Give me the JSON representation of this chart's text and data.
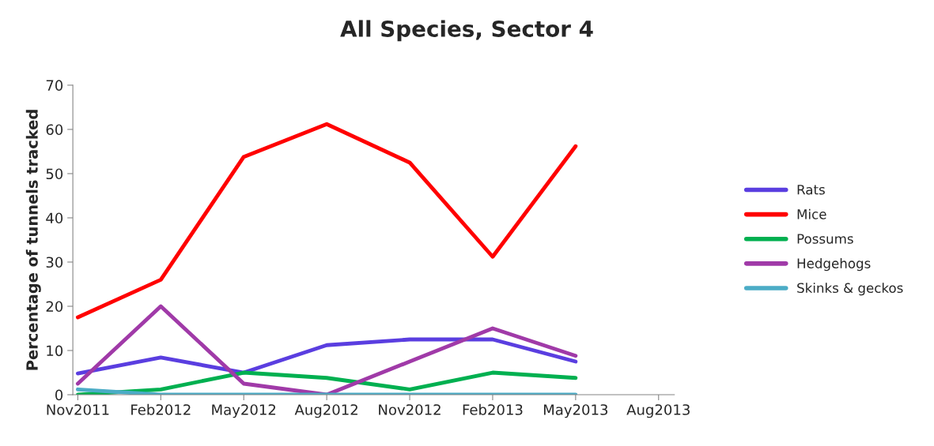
{
  "chart_data": {
    "type": "line",
    "title": "All Species, Sector 4",
    "ylabel": "Percentage of tunnels tracked",
    "categories": [
      "Nov2011",
      "Feb2012",
      "May2012",
      "Aug2012",
      "Nov2012",
      "Feb2013",
      "May2013",
      "Aug2013"
    ],
    "series": [
      {
        "name": "Rats",
        "color": "#5a3ee0",
        "values": [
          4.8,
          8.4,
          5,
          11.2,
          12.5,
          12.5,
          7.5,
          null
        ]
      },
      {
        "name": "Mice",
        "color": "#ff0000",
        "values": [
          17.5,
          26,
          53.8,
          61.2,
          52.5,
          31.2,
          56.2,
          null
        ]
      },
      {
        "name": "Possums",
        "color": "#00b050",
        "values": [
          0,
          1.2,
          5,
          3.8,
          1.2,
          5,
          3.8,
          null
        ]
      },
      {
        "name": "Hedgehogs",
        "color": "#a03aa8",
        "values": [
          2.5,
          20,
          2.5,
          0,
          7.5,
          15,
          8.8,
          null
        ]
      },
      {
        "name": "Skinks & geckos",
        "color": "#4bacc6",
        "values": [
          1.2,
          0,
          0,
          0,
          0,
          0,
          0,
          null
        ]
      }
    ],
    "ylim": [
      0,
      70
    ],
    "yticks": [
      0,
      10,
      20,
      30,
      40,
      50,
      60,
      70
    ],
    "grid": false,
    "legend": "right",
    "marker": "none",
    "line_style": "solid"
  }
}
